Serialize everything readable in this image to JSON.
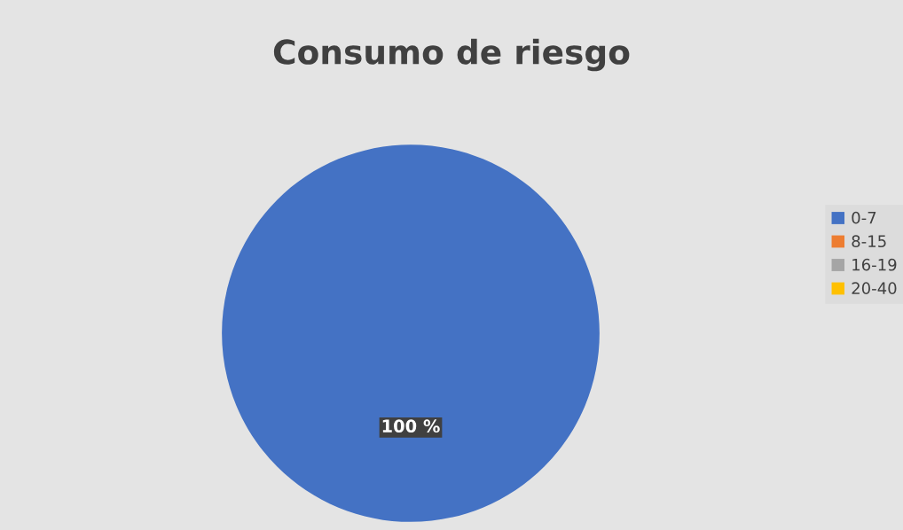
{
  "chart_data": {
    "type": "pie",
    "title": "Consumo de riesgo",
    "categories": [
      "0-7",
      "8-15",
      "16-19",
      "20-40"
    ],
    "values": [
      100,
      0,
      0,
      0
    ],
    "colors": [
      "#4472c4",
      "#ed7d31",
      "#a5a5a5",
      "#ffc000"
    ],
    "value_labels": [
      "100 %",
      null,
      null,
      null
    ],
    "legend": "right"
  }
}
